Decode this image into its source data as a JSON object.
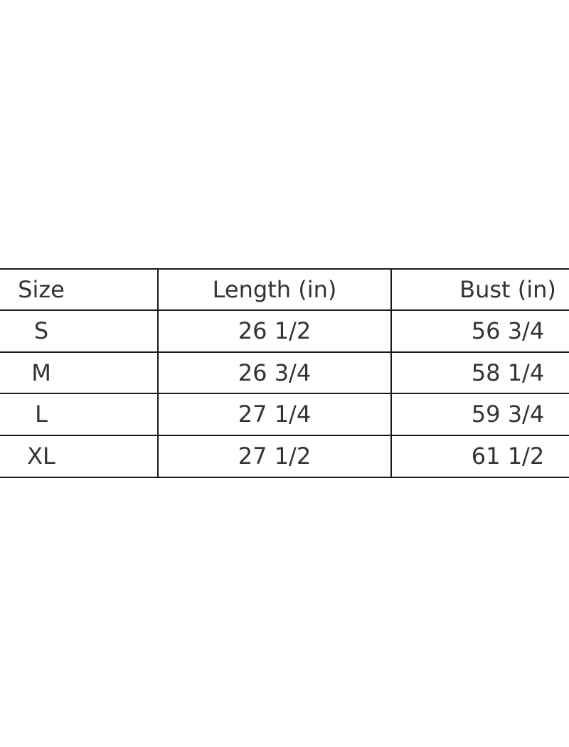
{
  "table": {
    "headers": [
      "Size",
      "Length (in)",
      "Bust (in)"
    ],
    "rows": [
      [
        "S",
        "26 1/2",
        "56 3/4"
      ],
      [
        "M",
        "26 3/4",
        "58 1/4"
      ],
      [
        "L",
        "27 1/4",
        "59 3/4"
      ],
      [
        "XL",
        "27 1/2",
        "61 1/2"
      ]
    ]
  },
  "colors": {
    "text": "#333333",
    "border": "#1a1a1a",
    "background": "#ffffff"
  }
}
